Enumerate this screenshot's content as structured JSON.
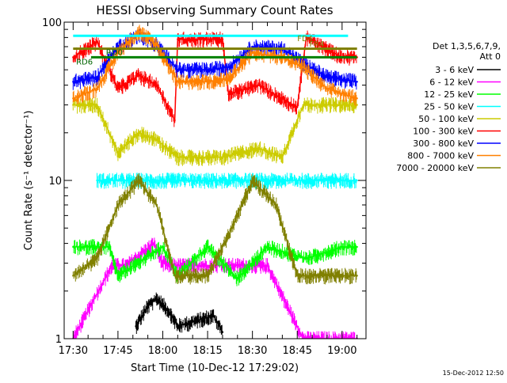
{
  "chart_data": {
    "type": "line",
    "title": "HESSI Observing Summary Count Rates",
    "xlabel": "Start Time (10-Dec-12 17:29:02)",
    "ylabel": "Count Rate (s⁻¹ detector⁻¹)",
    "yscale": "log",
    "ylim": [
      1,
      100
    ],
    "xlim": [
      "17:27",
      "19:08"
    ],
    "y_tick_labels": [
      "1",
      "10",
      "100"
    ],
    "x_tick_labels": [
      "17:30",
      "17:45",
      "18:00",
      "18:15",
      "18:30",
      "18:45",
      "19:00"
    ],
    "grid": false,
    "legend_position": "right",
    "legend_title": [
      "Det 1,3,5,6,7,9,",
      "Att 0"
    ],
    "footer_timestamp": "15-Dec-2012 12:50",
    "annotations": [
      "RD6",
      "RD0",
      "FD4",
      "FR4"
    ],
    "series": [
      {
        "name": "3 - 6 keV",
        "color": "#000000",
        "x": [
          "17:51",
          "17:55",
          "17:58",
          "18:02",
          "18:05",
          "18:17",
          "18:20"
        ],
        "values": [
          1.2,
          1.6,
          1.8,
          1.5,
          1.2,
          1.4,
          1.1
        ]
      },
      {
        "name": "6 - 12 keV",
        "color": "#ff00ff",
        "x": [
          "17:30",
          "17:43",
          "17:48",
          "17:57",
          "18:00",
          "18:05",
          "18:20",
          "18:35",
          "18:47",
          "19:05"
        ],
        "values": [
          1.0,
          2.9,
          2.9,
          4.0,
          3.0,
          2.9,
          2.9,
          2.9,
          1.0,
          1.0
        ]
      },
      {
        "name": "12 - 25 keV",
        "color": "#00ff00",
        "x": [
          "17:30",
          "17:42",
          "17:45",
          "18:00",
          "18:05",
          "18:15",
          "18:25",
          "18:35",
          "18:48",
          "19:00",
          "19:05"
        ],
        "values": [
          3.8,
          3.8,
          2.5,
          3.8,
          2.5,
          3.8,
          2.4,
          3.8,
          3.2,
          3.8,
          3.8
        ]
      },
      {
        "name": "25 - 50 keV",
        "color": "#00ffff",
        "x": [
          "17:38",
          "17:45",
          "17:52",
          "17:58",
          "18:05",
          "18:15",
          "18:30",
          "18:45",
          "18:50",
          "19:00",
          "19:05"
        ],
        "values": [
          10,
          10,
          10,
          10,
          10,
          10,
          10,
          10,
          10,
          10,
          10
        ]
      },
      {
        "name": "50 - 100 keV",
        "color": "#cccc00",
        "x": [
          "17:30",
          "17:38",
          "17:45",
          "17:52",
          "17:58",
          "18:05",
          "18:20",
          "18:32",
          "18:40",
          "18:47",
          "18:55",
          "19:05"
        ],
        "values": [
          30,
          30,
          15,
          20,
          18,
          14,
          14,
          16,
          14,
          30,
          30,
          30
        ]
      },
      {
        "name": "100 - 300 keV",
        "color": "#ff0000",
        "x": [
          "17:30",
          "17:38",
          "17:45",
          "17:52",
          "17:58",
          "18:04",
          "18:05",
          "18:20",
          "18:22",
          "18:32",
          "18:45",
          "18:48",
          "19:00",
          "19:05"
        ],
        "values": [
          60,
          75,
          38,
          46,
          40,
          24,
          78,
          78,
          35,
          40,
          29,
          80,
          60,
          60
        ]
      },
      {
        "name": "300 - 800 keV",
        "color": "#0000ff",
        "x": [
          "17:30",
          "17:38",
          "17:45",
          "17:52",
          "17:58",
          "18:05",
          "18:15",
          "18:22",
          "18:30",
          "18:40",
          "18:47",
          "18:55",
          "19:05"
        ],
        "values": [
          42,
          45,
          70,
          83,
          72,
          50,
          50,
          52,
          70,
          68,
          55,
          45,
          42
        ]
      },
      {
        "name": "800 - 7000 keV",
        "color": "#ff8000",
        "x": [
          "17:30",
          "17:38",
          "17:45",
          "17:52",
          "17:58",
          "18:05",
          "18:15",
          "18:22",
          "18:30",
          "18:40",
          "18:47",
          "18:55",
          "19:05"
        ],
        "values": [
          33,
          38,
          64,
          88,
          72,
          42,
          42,
          44,
          64,
          60,
          52,
          38,
          33
        ]
      },
      {
        "name": "7000 - 20000 keV",
        "color": "#808000",
        "x": [
          "17:30",
          "17:38",
          "17:45",
          "17:52",
          "17:58",
          "18:04",
          "18:15",
          "18:22",
          "18:30",
          "18:38",
          "18:45",
          "18:50",
          "19:05"
        ],
        "values": [
          2.5,
          3.2,
          7.0,
          10,
          7.0,
          2.5,
          2.5,
          4.5,
          10,
          7.0,
          2.5,
          2.5,
          2.5
        ]
      }
    ],
    "reference_lines": [
      {
        "color": "#00ffff",
        "y": 82,
        "x": [
          "17:30",
          "19:02"
        ]
      },
      {
        "color": "#008000",
        "y": 60,
        "x": [
          "17:36",
          "19:05"
        ]
      },
      {
        "color": "#808000",
        "y": 68,
        "x": [
          "17:30",
          "19:05"
        ]
      }
    ]
  }
}
